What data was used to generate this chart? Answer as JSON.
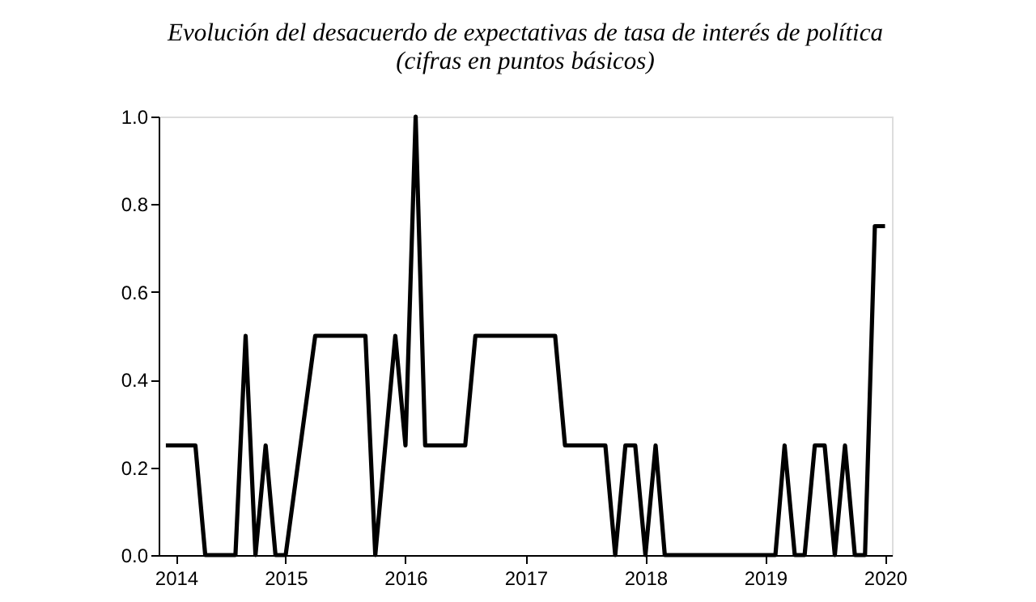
{
  "chart_data": {
    "type": "line",
    "title": [
      "Evolución del desacuerdo de expectativas de tasa de interés de política",
      "(cifras en puntos básicos)"
    ],
    "x": [
      "2014-01",
      "2014-04",
      "2014-05",
      "2014-08",
      "2014-09",
      "2014-10",
      "2014-11",
      "2014-12",
      "2015-01",
      "2015-04",
      "2015-09",
      "2015-10",
      "2015-12",
      "2016-01",
      "2016-02",
      "2016-03",
      "2016-07",
      "2016-08",
      "2017-04",
      "2017-05",
      "2017-09",
      "2017-10",
      "2017-11",
      "2017-12",
      "2018-01",
      "2018-02",
      "2018-03",
      "2019-02",
      "2019-03",
      "2019-04",
      "2019-05",
      "2019-06",
      "2019-07",
      "2019-08",
      "2019-09",
      "2019-10",
      "2019-11",
      "2019-12",
      "2020-01"
    ],
    "series": [
      {
        "color": "#000000",
        "values": [
          0.25,
          0.25,
          0,
          0,
          0.5,
          0,
          0.25,
          0,
          0,
          0.5,
          0.5,
          0,
          0.5,
          0.25,
          1,
          0.25,
          0.25,
          0.5,
          0.5,
          0.25,
          0.25,
          0,
          0.25,
          0.25,
          0,
          0.25,
          0,
          0,
          0.25,
          0,
          0,
          0.25,
          0.25,
          0,
          0.25,
          0,
          0,
          0.75,
          0.75
        ]
      }
    ],
    "xlim": [
      "2013-12-10",
      "2020-01-22"
    ],
    "xticks": [
      {
        "value": "2014-02",
        "label": "2014"
      },
      {
        "value": "2015-01",
        "label": "2015"
      },
      {
        "value": "2016-01",
        "label": "2016"
      },
      {
        "value": "2017-01",
        "label": "2017"
      },
      {
        "value": "2018-01",
        "label": "2018"
      },
      {
        "value": "2019-01",
        "label": "2019"
      },
      {
        "value": "2020-01",
        "label": "2020"
      }
    ],
    "ylim": [
      0,
      1
    ],
    "yticks": [
      {
        "value": 0,
        "label": "0.0"
      },
      0.2,
      0.4,
      0.6,
      0.8,
      {
        "value": 1,
        "label": "1.0"
      }
    ],
    "grid": false,
    "line_style": "solid",
    "marker": "none"
  }
}
